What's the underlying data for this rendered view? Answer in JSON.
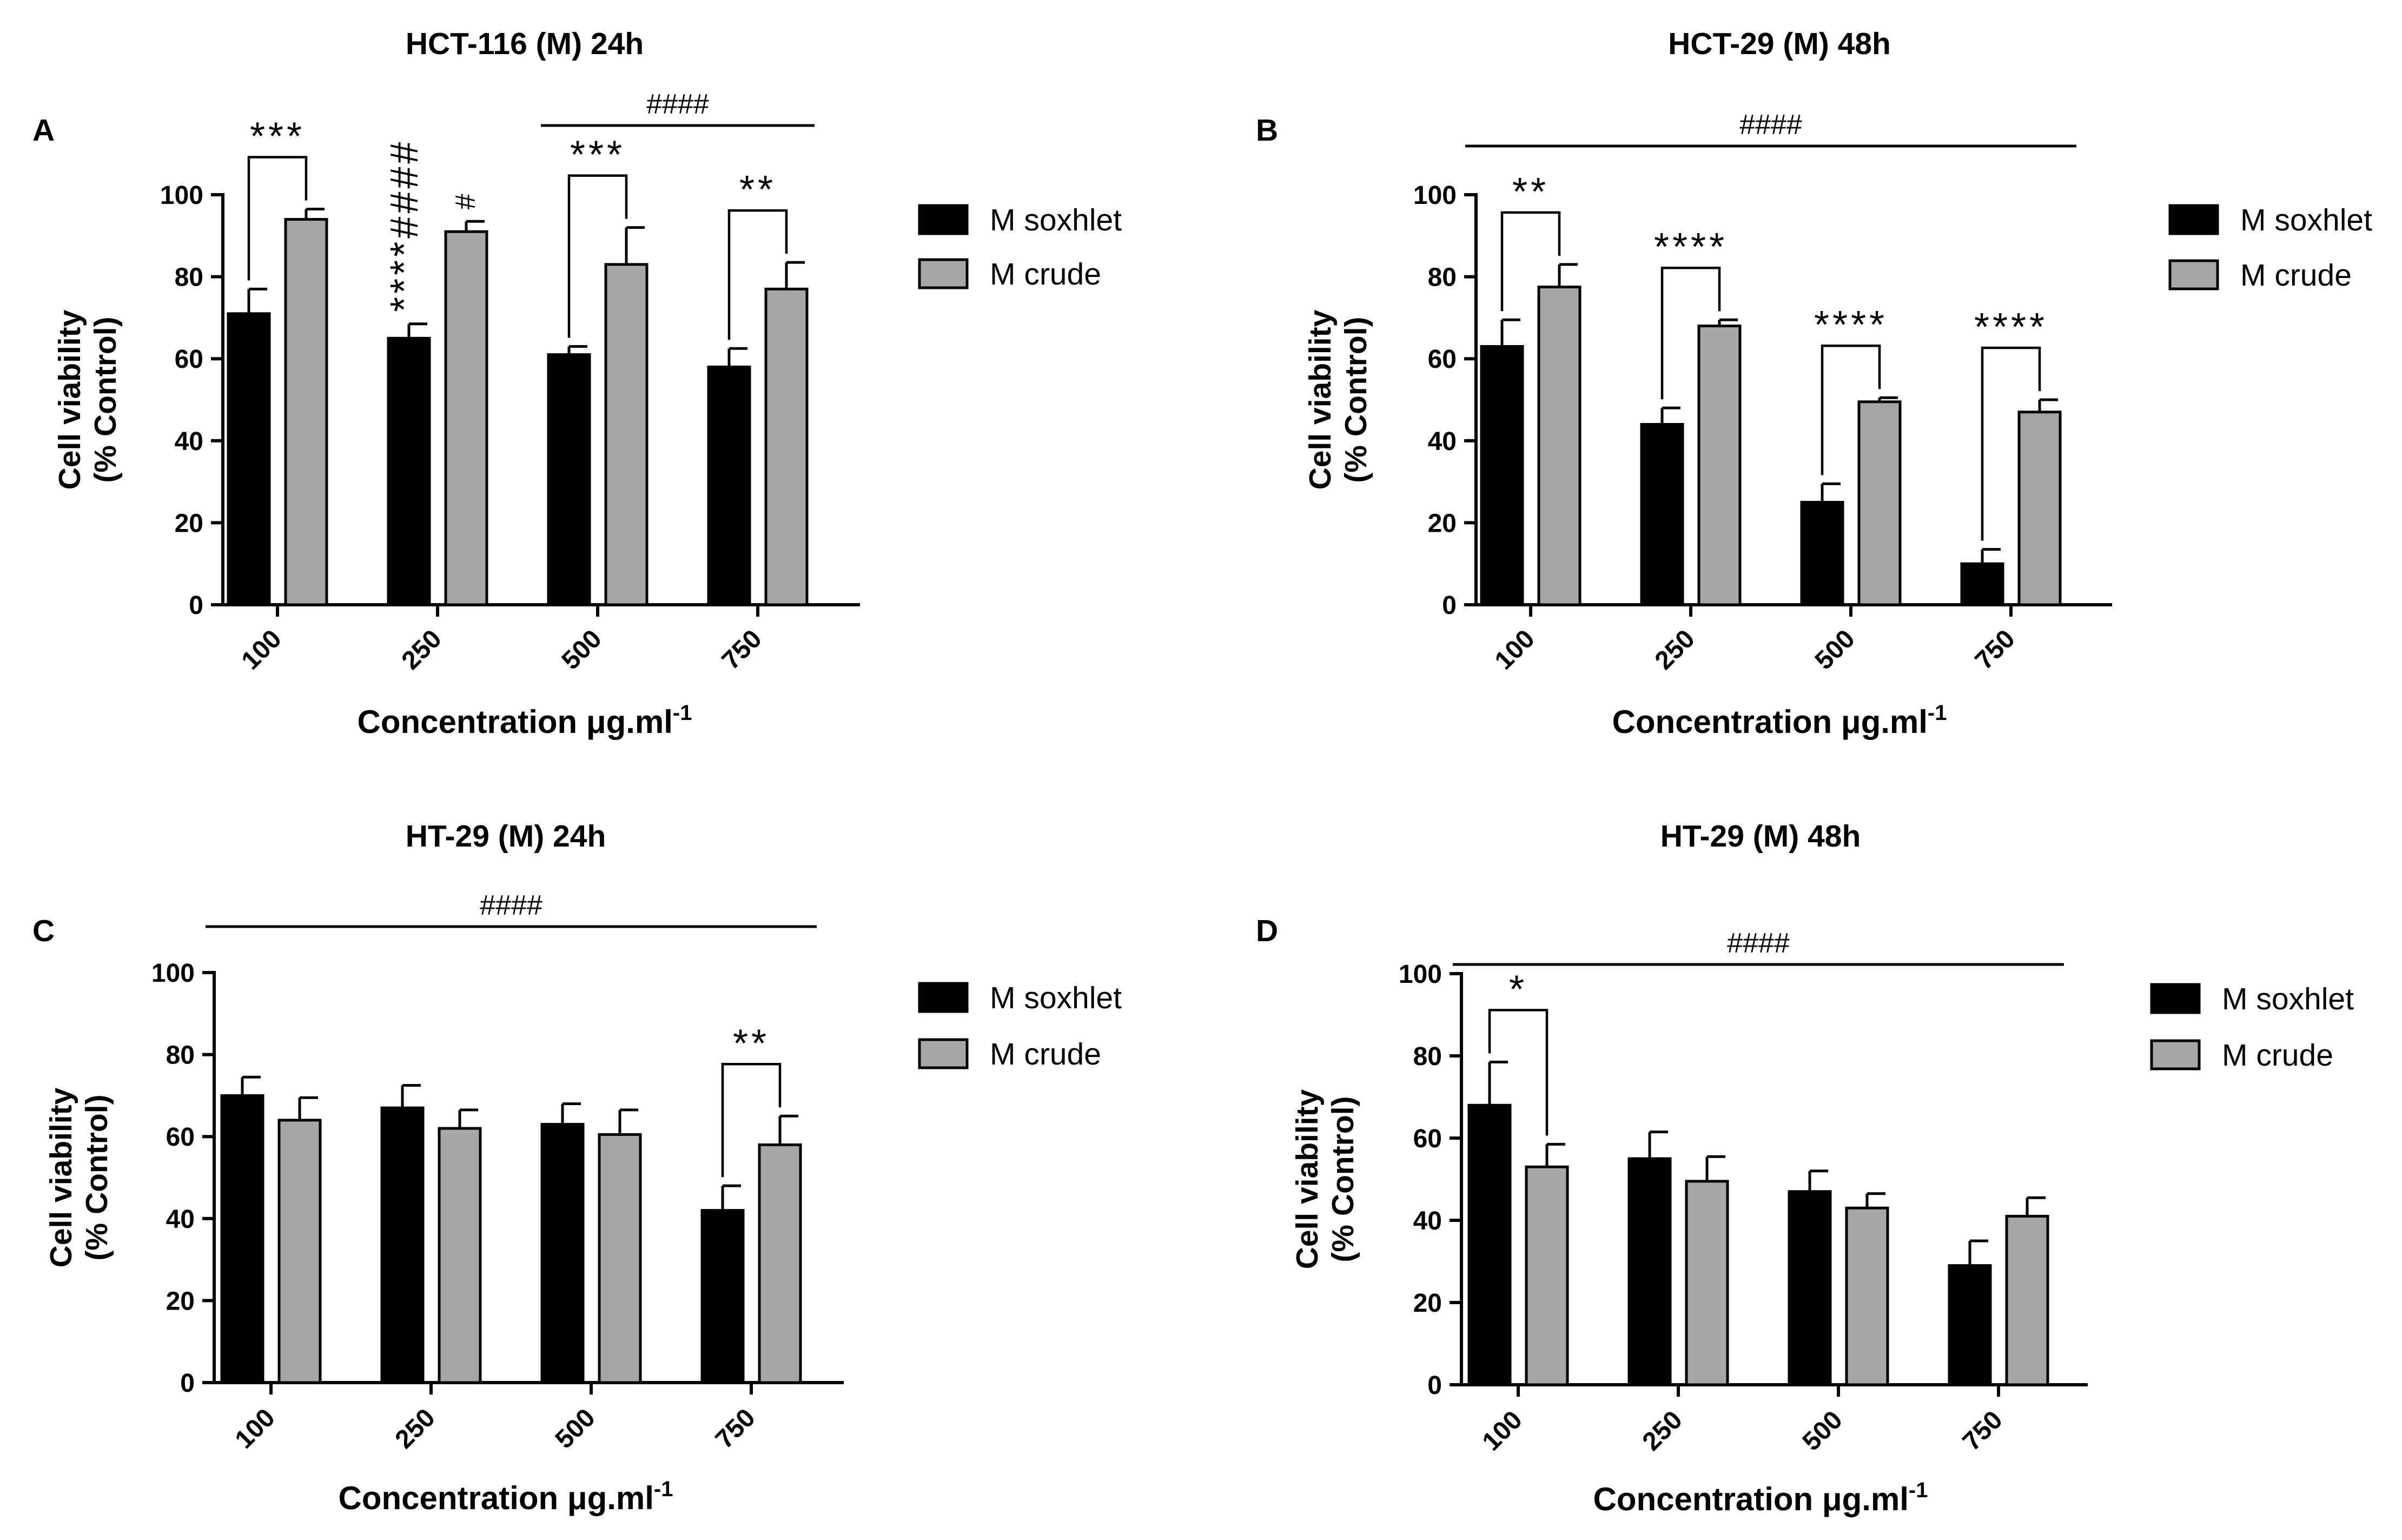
{
  "chart_data": [
    {
      "type": "bar",
      "panel": "A",
      "title": "HCT-116 (M) 24h",
      "ylabel_line1": "Cell viability",
      "ylabel_line2": "(% Control)",
      "xlabel": "Concentration μg.ml",
      "xlabel_sup": "-1",
      "ylim": [
        0,
        100
      ],
      "yticks": [
        "0",
        "20",
        "40",
        "60",
        "80",
        "100"
      ],
      "categories": [
        "100",
        "250",
        "500",
        "750"
      ],
      "series": [
        {
          "name": "M soxhlet",
          "color": "#000000",
          "values": [
            71,
            65,
            61,
            58
          ],
          "errors": [
            6,
            3.5,
            2,
            4.5
          ]
        },
        {
          "name": "M crude",
          "color": "#a6a6a6",
          "values": [
            94,
            91,
            83,
            77
          ],
          "errors": [
            2.5,
            2.5,
            9,
            6.5
          ]
        }
      ],
      "legend": [
        "M soxhlet",
        "M crude"
      ],
      "significance_brackets": [
        {
          "category": 0,
          "label": "***"
        },
        {
          "category": 2,
          "label": "***"
        },
        {
          "category": 3,
          "label": "**"
        }
      ],
      "bar_marks": [
        {
          "category": 1,
          "series": 0,
          "label": "****####"
        },
        {
          "category": 1,
          "series": 1,
          "label": "#"
        }
      ],
      "span_lines": [
        {
          "from": 2,
          "to": 3,
          "label": "####"
        }
      ]
    },
    {
      "type": "bar",
      "panel": "B",
      "title": "HCT-29 (M) 48h",
      "ylabel_line1": "Cell viability",
      "ylabel_line2": "(% Control)",
      "xlabel": "Concentration μg.ml",
      "xlabel_sup": "-1",
      "ylim": [
        0,
        100
      ],
      "yticks": [
        "0",
        "20",
        "40",
        "60",
        "80",
        "100"
      ],
      "categories": [
        "100",
        "250",
        "500",
        "750"
      ],
      "series": [
        {
          "name": "M soxhlet",
          "color": "#000000",
          "values": [
            63,
            44,
            25,
            10
          ],
          "errors": [
            6.5,
            4,
            4.5,
            3.5
          ]
        },
        {
          "name": "M crude",
          "color": "#a6a6a6",
          "values": [
            77.5,
            68,
            49.5,
            47
          ],
          "errors": [
            5.5,
            1.5,
            1,
            3
          ]
        }
      ],
      "legend": [
        "M soxhlet",
        "M crude"
      ],
      "significance_brackets": [
        {
          "category": 0,
          "label": "**"
        },
        {
          "category": 1,
          "label": "****"
        },
        {
          "category": 2,
          "label": "****"
        },
        {
          "category": 3,
          "label": "****"
        }
      ],
      "bar_marks": [],
      "span_lines": [
        {
          "from": 0,
          "to": 3,
          "label": "####"
        }
      ]
    },
    {
      "type": "bar",
      "panel": "C",
      "title": "HT-29 (M) 24h",
      "ylabel_line1": "Cell viability",
      "ylabel_line2": "(% Control)",
      "xlabel": "Concentration μg.ml",
      "xlabel_sup": "-1",
      "ylim": [
        0,
        100
      ],
      "yticks": [
        "0",
        "20",
        "40",
        "60",
        "80",
        "100"
      ],
      "categories": [
        "100",
        "250",
        "500",
        "750"
      ],
      "series": [
        {
          "name": "M soxhlet",
          "color": "#000000",
          "values": [
            70,
            67,
            63,
            42
          ],
          "errors": [
            4.5,
            5.5,
            5,
            6
          ]
        },
        {
          "name": "M crude",
          "color": "#a6a6a6",
          "values": [
            64,
            62,
            60.5,
            58
          ],
          "errors": [
            5.5,
            4.5,
            6,
            7
          ]
        }
      ],
      "legend": [
        "M soxhlet",
        "M crude"
      ],
      "significance_brackets": [
        {
          "category": 3,
          "label": "**"
        }
      ],
      "bar_marks": [],
      "span_lines": [
        {
          "from": 0,
          "to": 3,
          "label": "####"
        }
      ]
    },
    {
      "type": "bar",
      "panel": "D",
      "title": "HT-29 (M) 48h",
      "ylabel_line1": "Cell viability",
      "ylabel_line2": "(% Control)",
      "xlabel": "Concentration μg.ml",
      "xlabel_sup": "-1",
      "ylim": [
        0,
        100
      ],
      "yticks": [
        "0",
        "20",
        "40",
        "60",
        "80",
        "100"
      ],
      "categories": [
        "100",
        "250",
        "500",
        "750"
      ],
      "series": [
        {
          "name": "M soxhlet",
          "color": "#000000",
          "values": [
            68,
            55,
            47,
            29
          ],
          "errors": [
            10.5,
            6.5,
            5,
            6
          ]
        },
        {
          "name": "M crude",
          "color": "#a6a6a6",
          "values": [
            53,
            49.5,
            43,
            41
          ],
          "errors": [
            5.5,
            6,
            3.5,
            4.5
          ]
        }
      ],
      "legend": [
        "M soxhlet",
        "M crude"
      ],
      "significance_brackets": [
        {
          "category": 0,
          "label": "*"
        }
      ],
      "bar_marks": [],
      "span_lines": [
        {
          "from": 0,
          "to": 3,
          "label": "####"
        }
      ]
    }
  ]
}
